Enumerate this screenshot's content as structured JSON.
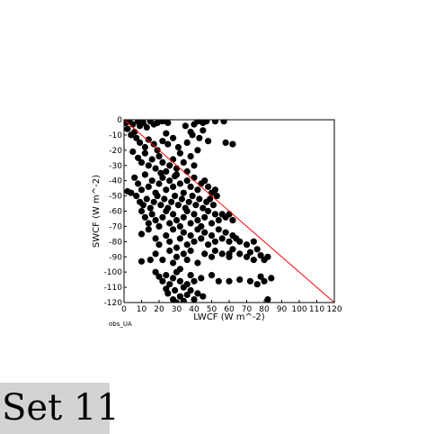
{
  "badge": {
    "label": "Set 11"
  },
  "chart_data": {
    "type": "scatter",
    "title": "",
    "xlabel": "LWCF (W m^-2)",
    "ylabel": "SWCF (W m^-2)",
    "xlim": [
      0,
      120
    ],
    "ylim": [
      -120,
      0
    ],
    "x_ticks": [
      0,
      10,
      20,
      30,
      40,
      50,
      60,
      70,
      80,
      90,
      100,
      110,
      120
    ],
    "y_ticks": [
      0,
      -10,
      -20,
      -30,
      -40,
      -50,
      -60,
      -70,
      -80,
      -90,
      -100,
      -110,
      -120
    ],
    "grid": false,
    "legend": "none",
    "annotation": "obs_UA",
    "reference_line": {
      "x": [
        0,
        120
      ],
      "y": [
        0,
        -120
      ],
      "color": "#ff0000"
    },
    "marker_color": "#000000",
    "series": [
      {
        "points": [
          [
            1,
            -2
          ],
          [
            3,
            -1
          ],
          [
            5,
            -3
          ],
          [
            2,
            -6
          ],
          [
            4,
            -10
          ],
          [
            6,
            -8
          ],
          [
            8,
            -1
          ],
          [
            9,
            -4
          ],
          [
            11,
            -2
          ],
          [
            13,
            -5
          ],
          [
            15,
            -1
          ],
          [
            17,
            -3
          ],
          [
            19,
            -2
          ],
          [
            22,
            -1
          ],
          [
            25,
            -2
          ],
          [
            35,
            -4
          ],
          [
            38,
            -8
          ],
          [
            40,
            -3
          ],
          [
            42,
            -1
          ],
          [
            45,
            -2
          ],
          [
            47,
            -1
          ],
          [
            52,
            -1
          ],
          [
            57,
            -1
          ],
          [
            7,
            -12
          ],
          [
            9,
            -15
          ],
          [
            12,
            -18
          ],
          [
            14,
            -13
          ],
          [
            17,
            -16
          ],
          [
            19,
            -20
          ],
          [
            22,
            -14
          ],
          [
            25,
            -16
          ],
          [
            28,
            -12
          ],
          [
            31,
            -18
          ],
          [
            36,
            -15
          ],
          [
            39,
            -10
          ],
          [
            43,
            -12
          ],
          [
            48,
            -14
          ],
          [
            58,
            -15
          ],
          [
            62,
            -16
          ],
          [
            24,
            -9
          ],
          [
            45,
            -7
          ],
          [
            5,
            -21
          ],
          [
            8,
            -25
          ],
          [
            10,
            -28
          ],
          [
            12,
            -22
          ],
          [
            14,
            -30
          ],
          [
            16,
            -26
          ],
          [
            18,
            -32
          ],
          [
            20,
            -24
          ],
          [
            22,
            -28
          ],
          [
            24,
            -34
          ],
          [
            26,
            -30
          ],
          [
            28,
            -26
          ],
          [
            30,
            -32
          ],
          [
            32,
            -22
          ],
          [
            34,
            -28
          ],
          [
            36,
            -34
          ],
          [
            38,
            -24
          ],
          [
            40,
            -30
          ],
          [
            42,
            -20
          ],
          [
            21,
            -35
          ],
          [
            29,
            -37
          ],
          [
            6,
            -38
          ],
          [
            8,
            -42
          ],
          [
            10,
            -46
          ],
          [
            12,
            -36
          ],
          [
            14,
            -44
          ],
          [
            16,
            -40
          ],
          [
            18,
            -48
          ],
          [
            20,
            -42
          ],
          [
            22,
            -38
          ],
          [
            24,
            -46
          ],
          [
            26,
            -40
          ],
          [
            28,
            -44
          ],
          [
            30,
            -36
          ],
          [
            32,
            -42
          ],
          [
            34,
            -48
          ],
          [
            36,
            -40
          ],
          [
            38,
            -44
          ],
          [
            40,
            -38
          ],
          [
            42,
            -46
          ],
          [
            44,
            -42
          ],
          [
            46,
            -40
          ],
          [
            48,
            -44
          ],
          [
            50,
            -48
          ],
          [
            52,
            -46
          ],
          [
            2,
            -47
          ],
          [
            4,
            -48
          ],
          [
            7,
            -50
          ],
          [
            9,
            -54
          ],
          [
            11,
            -56
          ],
          [
            13,
            -52
          ],
          [
            15,
            -58
          ],
          [
            17,
            -54
          ],
          [
            19,
            -50
          ],
          [
            21,
            -56
          ],
          [
            23,
            -52
          ],
          [
            25,
            -58
          ],
          [
            27,
            -54
          ],
          [
            29,
            -50
          ],
          [
            31,
            -56
          ],
          [
            33,
            -52
          ],
          [
            35,
            -58
          ],
          [
            37,
            -54
          ],
          [
            39,
            -50
          ],
          [
            41,
            -56
          ],
          [
            43,
            -52
          ],
          [
            45,
            -58
          ],
          [
            47,
            -54
          ],
          [
            49,
            -52
          ],
          [
            51,
            -56
          ],
          [
            53,
            -50
          ],
          [
            10,
            -60
          ],
          [
            12,
            -64
          ],
          [
            14,
            -68
          ],
          [
            16,
            -62
          ],
          [
            18,
            -66
          ],
          [
            20,
            -70
          ],
          [
            22,
            -64
          ],
          [
            24,
            -60
          ],
          [
            26,
            -68
          ],
          [
            28,
            -62
          ],
          [
            30,
            -66
          ],
          [
            32,
            -70
          ],
          [
            34,
            -64
          ],
          [
            36,
            -60
          ],
          [
            38,
            -68
          ],
          [
            40,
            -62
          ],
          [
            42,
            -66
          ],
          [
            44,
            -70
          ],
          [
            46,
            -64
          ],
          [
            48,
            -60
          ],
          [
            50,
            -68
          ],
          [
            52,
            -62
          ],
          [
            54,
            -66
          ],
          [
            56,
            -62
          ],
          [
            58,
            -64
          ],
          [
            60,
            -62
          ],
          [
            62,
            -66
          ],
          [
            10,
            -75
          ],
          [
            14,
            -72
          ],
          [
            18,
            -78
          ],
          [
            20,
            -82
          ],
          [
            24,
            -76
          ],
          [
            26,
            -80
          ],
          [
            28,
            -72
          ],
          [
            30,
            -84
          ],
          [
            32,
            -78
          ],
          [
            34,
            -74
          ],
          [
            36,
            -82
          ],
          [
            38,
            -76
          ],
          [
            40,
            -80
          ],
          [
            42,
            -72
          ],
          [
            44,
            -78
          ],
          [
            46,
            -74
          ],
          [
            48,
            -82
          ],
          [
            50,
            -76
          ],
          [
            52,
            -80
          ],
          [
            54,
            -72
          ],
          [
            56,
            -78
          ],
          [
            58,
            -74
          ],
          [
            60,
            -80
          ],
          [
            62,
            -76
          ],
          [
            64,
            -78
          ],
          [
            66,
            -80
          ],
          [
            70,
            -82
          ],
          [
            74,
            -80
          ],
          [
            10,
            -93
          ],
          [
            18,
            -88
          ],
          [
            22,
            -92
          ],
          [
            26,
            -86
          ],
          [
            28,
            -94
          ],
          [
            30,
            -90
          ],
          [
            32,
            -98
          ],
          [
            34,
            -88
          ],
          [
            36,
            -92
          ],
          [
            38,
            -86
          ],
          [
            42,
            -94
          ],
          [
            46,
            -88
          ],
          [
            50,
            -90
          ],
          [
            52,
            -86
          ],
          [
            56,
            -88
          ],
          [
            60,
            -90
          ],
          [
            62,
            -85
          ],
          [
            66,
            -88
          ],
          [
            70,
            -90
          ],
          [
            72,
            -87
          ],
          [
            74,
            -92
          ],
          [
            76,
            -85
          ],
          [
            78,
            -89
          ],
          [
            80,
            -92
          ],
          [
            82,
            -90
          ],
          [
            60,
            -88
          ],
          [
            15,
            -92
          ],
          [
            18,
            -100
          ],
          [
            20,
            -103
          ],
          [
            22,
            -106
          ],
          [
            24,
            -102
          ],
          [
            26,
            -108
          ],
          [
            28,
            -104
          ],
          [
            30,
            -100
          ],
          [
            32,
            -106
          ],
          [
            34,
            -110
          ],
          [
            36,
            -108
          ],
          [
            38,
            -102
          ],
          [
            40,
            -106
          ],
          [
            44,
            -104
          ],
          [
            50,
            -102
          ],
          [
            54,
            -106
          ],
          [
            60,
            -106
          ],
          [
            66,
            -105
          ],
          [
            72,
            -106
          ],
          [
            76,
            -108
          ],
          [
            78,
            -103
          ],
          [
            80,
            -106
          ],
          [
            84,
            -104
          ],
          [
            25,
            -114
          ],
          [
            28,
            -118
          ],
          [
            30,
            -120
          ],
          [
            32,
            -116
          ],
          [
            34,
            -119
          ],
          [
            36,
            -115
          ],
          [
            38,
            -112
          ],
          [
            40,
            -118
          ],
          [
            42,
            -114
          ],
          [
            45,
            -116
          ],
          [
            24,
            -111
          ],
          [
            29,
            -112
          ],
          [
            82,
            -118
          ]
        ]
      }
    ]
  }
}
